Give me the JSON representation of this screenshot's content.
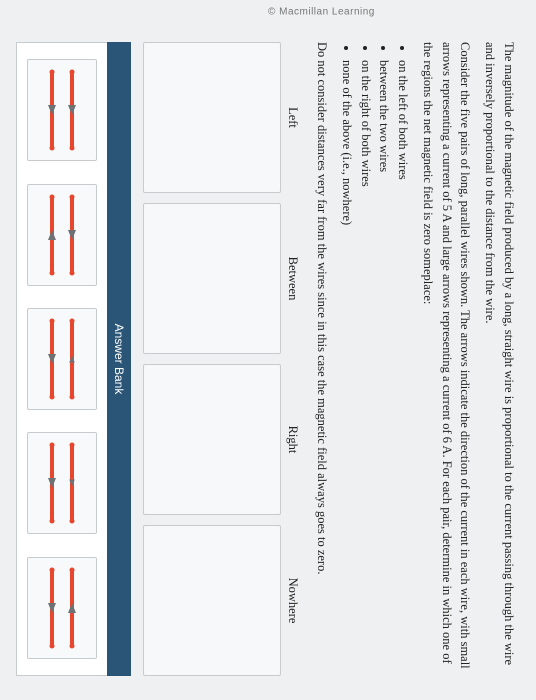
{
  "watermark": "© Macmillan Learning",
  "para1": "The magnitude of the magnetic field produced by a long, straight wire is proportional to the current passing through the wire and inversely proportional to the distance from the wire.",
  "para2": "Consider the five pairs of long, parallel wires shown. The arrows indicate the direction of the current in each wire, with small arrows representing a current of 5 A and large arrows representing a current of 6 A. For each pair, determine in which one of the regions the net magnetic field is zero someplace:",
  "bullets": [
    "on the left of both wires",
    "between the two wires",
    "on the right of both wires",
    "none of the above (i.e., nowhere)"
  ],
  "para3": "Do not consider distances very far from the wires since in this case the magnetic field always goes to zero.",
  "zones": {
    "left": "Left",
    "between": "Between",
    "right": "Right",
    "nowhere": "Nowhere"
  },
  "answer_bank_label": "Answer Bank",
  "colors": {
    "wire": "#e8472f",
    "arrow": "#6e7275",
    "header_bg": "#2a5577",
    "box_border": "#c7cbce",
    "box_bg": "#f6f8f9",
    "page_bg": "#eef0f1"
  },
  "tiles": [
    {
      "top": {
        "dir": "right",
        "size": 1.0
      },
      "bottom": {
        "dir": "right",
        "size": 1.0
      }
    },
    {
      "top": {
        "dir": "right",
        "size": 1.0
      },
      "bottom": {
        "dir": "left",
        "size": 1.0
      }
    },
    {
      "top": {
        "dir": "left",
        "size": 0.7
      },
      "bottom": {
        "dir": "right",
        "size": 1.0
      }
    },
    {
      "top": {
        "dir": "right",
        "size": 0.7
      },
      "bottom": {
        "dir": "right",
        "size": 1.0
      }
    },
    {
      "top": {
        "dir": "left",
        "size": 1.0
      },
      "bottom": {
        "dir": "right",
        "size": 1.0
      }
    }
  ]
}
